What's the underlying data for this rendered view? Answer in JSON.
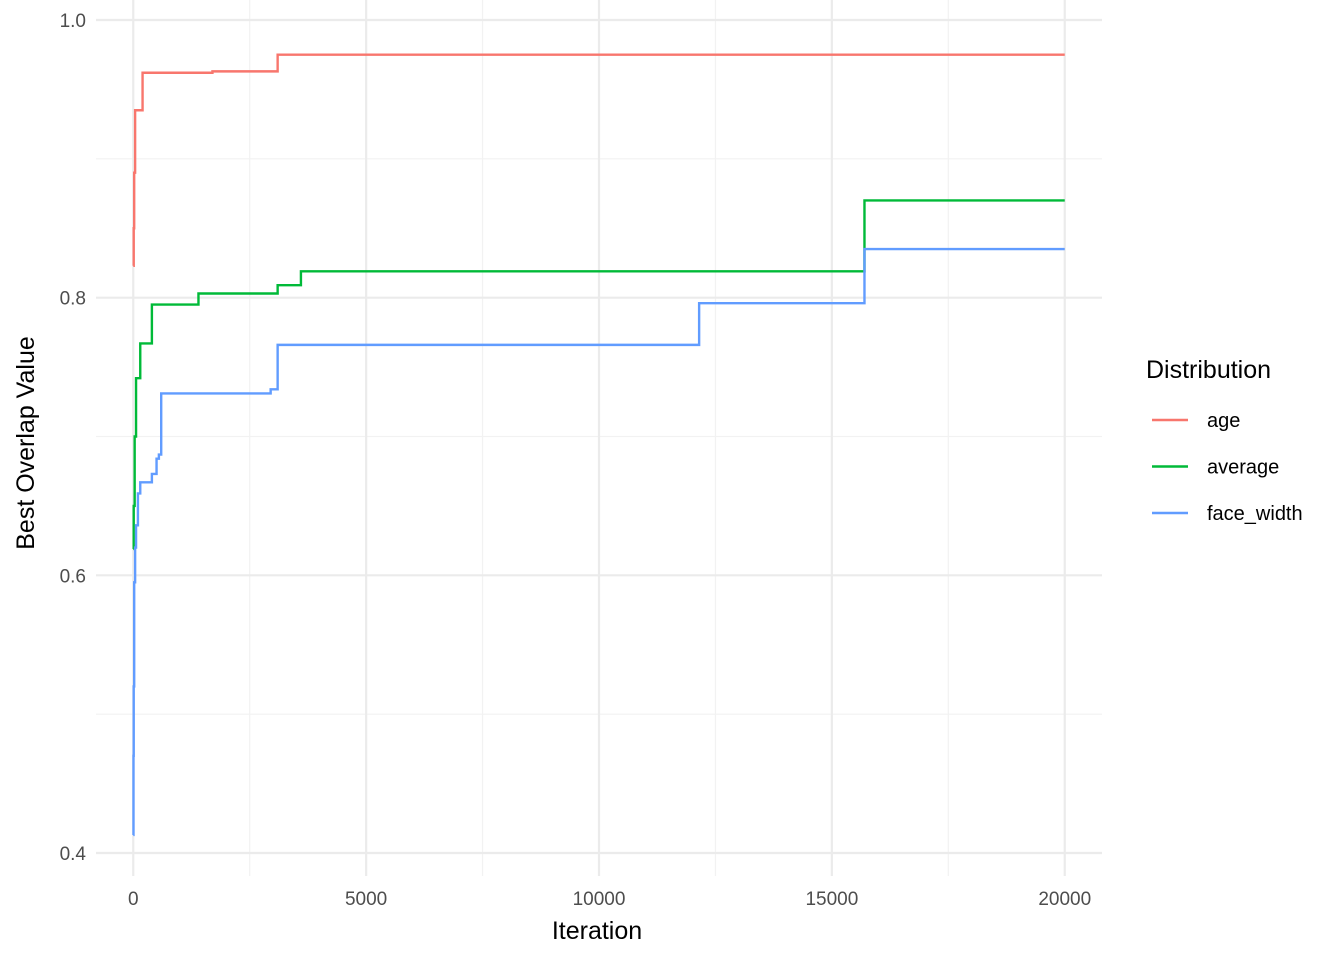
{
  "chart_data": {
    "type": "line",
    "xlabel": "Iteration",
    "ylabel": "Best Overlap Value",
    "xlim": [
      -800,
      20800
    ],
    "ylim": [
      0.387,
      1.0
    ],
    "x_ticks": [
      0,
      5000,
      10000,
      15000,
      20000
    ],
    "x_tick_labels": [
      "0",
      "5000",
      "10000",
      "15000",
      "20000"
    ],
    "y_ticks": [
      0.4,
      0.6,
      0.8,
      1.0
    ],
    "y_tick_labels": [
      "0.4",
      "0.6",
      "0.8",
      "1.0"
    ],
    "grid": true,
    "step": true,
    "legend": {
      "title": "Distribution",
      "position": "right"
    },
    "series": [
      {
        "name": "age",
        "color": "#F8766D",
        "points": [
          [
            0,
            0.823
          ],
          [
            10,
            0.85
          ],
          [
            20,
            0.89
          ],
          [
            40,
            0.935
          ],
          [
            200,
            0.962
          ],
          [
            1700,
            0.963
          ],
          [
            3100,
            0.975
          ],
          [
            20000,
            0.975
          ]
        ]
      },
      {
        "name": "average",
        "color": "#00BA38",
        "points": [
          [
            0,
            0.619
          ],
          [
            10,
            0.65
          ],
          [
            30,
            0.7
          ],
          [
            60,
            0.742
          ],
          [
            150,
            0.767
          ],
          [
            400,
            0.795
          ],
          [
            1400,
            0.803
          ],
          [
            3100,
            0.809
          ],
          [
            3600,
            0.819
          ],
          [
            15700,
            0.87
          ],
          [
            20000,
            0.87
          ]
        ]
      },
      {
        "name": "face_width",
        "color": "#619CFF",
        "points": [
          [
            0,
            0.413
          ],
          [
            5,
            0.47
          ],
          [
            10,
            0.52
          ],
          [
            20,
            0.595
          ],
          [
            40,
            0.62
          ],
          [
            60,
            0.636
          ],
          [
            100,
            0.659
          ],
          [
            150,
            0.667
          ],
          [
            400,
            0.673
          ],
          [
            500,
            0.684
          ],
          [
            550,
            0.687
          ],
          [
            600,
            0.731
          ],
          [
            2950,
            0.734
          ],
          [
            3100,
            0.766
          ],
          [
            12150,
            0.796
          ],
          [
            15700,
            0.835
          ],
          [
            20000,
            0.835
          ]
        ]
      }
    ]
  }
}
